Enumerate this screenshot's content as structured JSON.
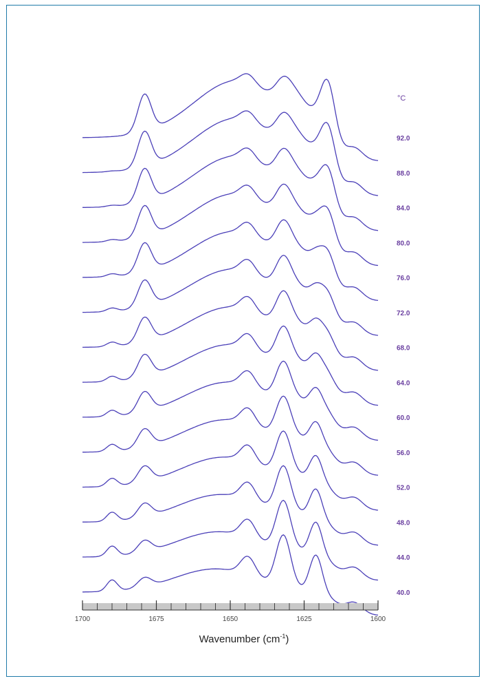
{
  "chart_data": {
    "type": "line",
    "xlabel_main": "Wavenumber (cm",
    "xlabel_sup": "-1",
    "xlabel_end": ")",
    "xlim": [
      1700,
      1600
    ],
    "x_ticks": [
      "1700",
      "1675",
      "1650",
      "1625",
      "1600"
    ],
    "legend_unit": "°C",
    "line_color": "#4a3fb8",
    "label_color": "#6a3fa0",
    "series": [
      {
        "name": "92.0"
      },
      {
        "name": "88.0"
      },
      {
        "name": "84.0"
      },
      {
        "name": "80.0"
      },
      {
        "name": "76.0"
      },
      {
        "name": "72.0"
      },
      {
        "name": "68.0"
      },
      {
        "name": "64.0"
      },
      {
        "name": "60.0"
      },
      {
        "name": "56.0"
      },
      {
        "name": "52.0"
      },
      {
        "name": "48.0"
      },
      {
        "name": "44.0"
      },
      {
        "name": "40.0"
      }
    ]
  }
}
